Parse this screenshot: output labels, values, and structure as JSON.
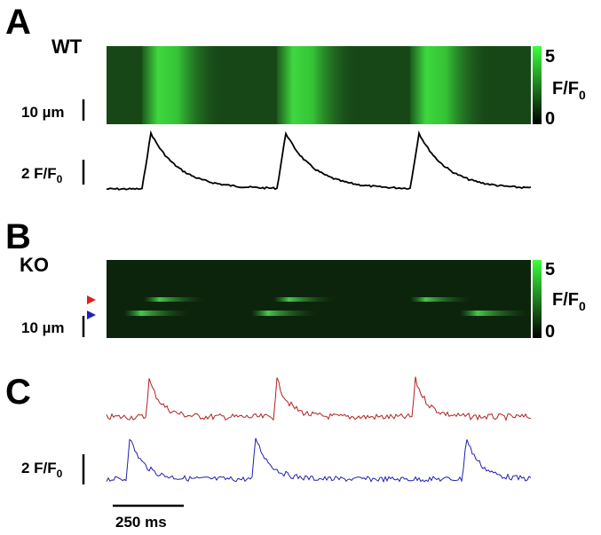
{
  "panel_a": {
    "letter": "A",
    "genotype": "WT",
    "space_scale": "10 µm",
    "colorbar": {
      "max": "5",
      "unit": "F/F",
      "unit_sub": "0",
      "min": "0"
    },
    "trace_scale": {
      "label": "2 F/F",
      "label_sub": "0"
    }
  },
  "panel_b": {
    "letter": "B",
    "genotype": "KO",
    "space_scale": "10 µm",
    "colorbar": {
      "max": "5",
      "unit": "F/F",
      "unit_sub": "0",
      "min": "0"
    }
  },
  "panel_c": {
    "letter": "C",
    "trace_scale": {
      "label": "2 F/F",
      "label_sub": "0"
    },
    "time_scale": "250 ms"
  }
}
